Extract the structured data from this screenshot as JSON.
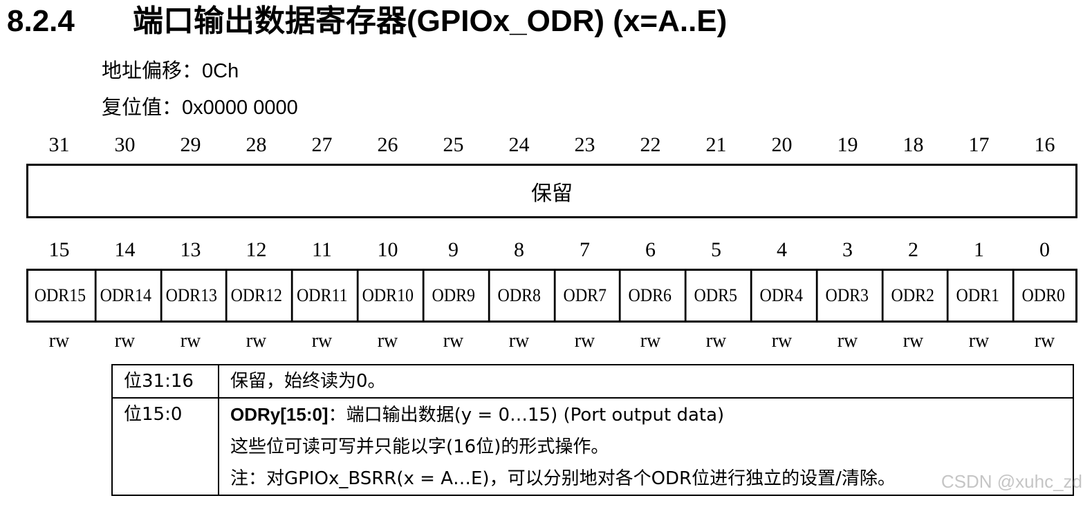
{
  "header": {
    "section_number": "8.2.4",
    "title": "端口输出数据寄存器(GPIOx_ODR) (x=A..E)"
  },
  "meta": {
    "offset_label": "地址偏移：",
    "offset_value": "0Ch",
    "reset_label": "复位值：",
    "reset_value": "0x0000 0000"
  },
  "upper_bits": [
    "31",
    "30",
    "29",
    "28",
    "27",
    "26",
    "25",
    "24",
    "23",
    "22",
    "21",
    "20",
    "19",
    "18",
    "17",
    "16"
  ],
  "reserved_label": "保留",
  "lower_bits": [
    "15",
    "14",
    "13",
    "12",
    "11",
    "10",
    "9",
    "8",
    "7",
    "6",
    "5",
    "4",
    "3",
    "2",
    "1",
    "0"
  ],
  "fields": [
    "ODR15",
    "ODR14",
    "ODR13",
    "ODR12",
    "ODR11",
    "ODR10",
    "ODR9",
    "ODR8",
    "ODR7",
    "ODR6",
    "ODR5",
    "ODR4",
    "ODR3",
    "ODR2",
    "ODR1",
    "ODR0"
  ],
  "access": [
    "rw",
    "rw",
    "rw",
    "rw",
    "rw",
    "rw",
    "rw",
    "rw",
    "rw",
    "rw",
    "rw",
    "rw",
    "rw",
    "rw",
    "rw",
    "rw"
  ],
  "descriptions": [
    {
      "bits": "位31:16",
      "text": "保留，始终读为0。"
    },
    {
      "bits": "位15:0",
      "name": "ODRy[15:0]",
      "name_suffix": "：端口输出数据(y = 0…15) (Port output data)",
      "line2": "这些位可读可写并只能以字(16位)的形式操作。",
      "line3": "注：对GPIOx_BSRR(x = A…E)，可以分别地对各个ODR位进行独立的设置/清除。"
    }
  ],
  "watermark": "CSDN @xuhc_zd"
}
